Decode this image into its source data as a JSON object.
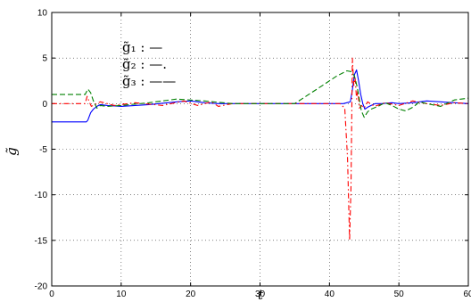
{
  "chart_data": {
    "type": "line",
    "title": "",
    "xlabel": "t",
    "ylabel": "g̃",
    "xlim": [
      0,
      60
    ],
    "ylim": [
      -20,
      10
    ],
    "xticks": [
      0,
      10,
      20,
      30,
      40,
      50,
      60
    ],
    "yticks": [
      10,
      5,
      0,
      -5,
      -10,
      -15,
      -20
    ],
    "grid": true,
    "legend_placement": "top-left",
    "legend_entries": [
      "g̃₁ : —",
      "g̃₂ : —.",
      "g̃₃ : ——"
    ],
    "series": [
      {
        "name": "g̃₁",
        "color": "#0000ff",
        "style": "solid",
        "x": [
          0,
          5,
          5.2,
          5.6,
          6.0,
          6.5,
          7.0,
          8.0,
          10.0,
          12.0,
          14.0,
          18.0,
          20.0,
          22.0,
          24.0,
          28.0,
          30.0,
          36.0,
          40.0,
          42.0,
          43.0,
          43.3,
          43.6,
          43.9,
          44.2,
          44.5,
          44.8,
          45.1,
          45.5,
          46.0,
          46.6,
          47.5,
          49.0,
          50.0,
          52.0,
          54.0,
          56.0,
          58.0,
          60.0
        ],
        "y": [
          -2,
          -2,
          -1.8,
          -1.0,
          -0.6,
          -0.3,
          -0.1,
          -0.2,
          -0.3,
          -0.2,
          -0.1,
          0.2,
          0.3,
          0.1,
          0.0,
          0.0,
          0.0,
          0.0,
          0.0,
          0.0,
          0.2,
          1.5,
          3.2,
          3.7,
          2.5,
          1.0,
          0.0,
          -0.6,
          -0.4,
          -0.2,
          0.0,
          0.0,
          0.1,
          0.0,
          0.1,
          0.3,
          0.2,
          0.1,
          0.0
        ]
      },
      {
        "name": "g̃₂",
        "color": "#ff0000",
        "style": "dashdot",
        "x": [
          0,
          3.0,
          4.8,
          5.1,
          5.4,
          5.7,
          6.2,
          7.0,
          9.0,
          12.0,
          16.0,
          19.0,
          21.0,
          23.0,
          24.0,
          26.0,
          30.0,
          38.0,
          41.5,
          42.2,
          42.6,
          42.9,
          43.1,
          43.3,
          43.5,
          43.7,
          43.9,
          44.1,
          44.3,
          44.6,
          45.0,
          45.5,
          46.5,
          48.0,
          50.0,
          52.0,
          54.0,
          56.0,
          58.0,
          60.0
        ],
        "y": [
          0,
          0,
          0.0,
          0.8,
          0.2,
          -0.3,
          -0.1,
          0.2,
          -0.2,
          0.1,
          -0.2,
          0.3,
          -0.2,
          0.2,
          -0.3,
          0.0,
          0.0,
          0.0,
          0.0,
          -0.5,
          -6.0,
          -15.0,
          -9.0,
          5.0,
          2.0,
          2.8,
          0.5,
          1.5,
          -0.5,
          -0.2,
          -0.5,
          0.2,
          -0.3,
          0.1,
          -0.2,
          0.3,
          0.0,
          -0.2,
          0.1,
          0.0
        ]
      },
      {
        "name": "g̃₃",
        "color": "#008000",
        "style": "dashed",
        "x": [
          0,
          4.8,
          5.2,
          5.6,
          6.0,
          6.5,
          7.0,
          8.0,
          10.0,
          14.0,
          18.0,
          22.0,
          26.0,
          30.0,
          35.0,
          37.0,
          39.0,
          41.0,
          42.5,
          43.2,
          43.6,
          44.0,
          44.3,
          44.6,
          45.0,
          45.5,
          46.0,
          47.0,
          48.0,
          49.0,
          50.0,
          51.0,
          52.0,
          53.0,
          54.0,
          56.0,
          58.0,
          60.0
        ],
        "y": [
          1,
          1,
          1.6,
          1.2,
          0.3,
          -0.5,
          -0.2,
          -0.3,
          -0.2,
          0.1,
          0.5,
          0.3,
          0.0,
          0.0,
          0.0,
          1.0,
          2.0,
          3.0,
          3.6,
          3.5,
          3.0,
          1.8,
          0.5,
          -0.8,
          -1.5,
          -0.9,
          -0.6,
          -0.3,
          0.1,
          -0.2,
          -0.6,
          -0.8,
          -0.4,
          0.2,
          0.0,
          -0.3,
          0.4,
          0.6
        ]
      }
    ]
  }
}
